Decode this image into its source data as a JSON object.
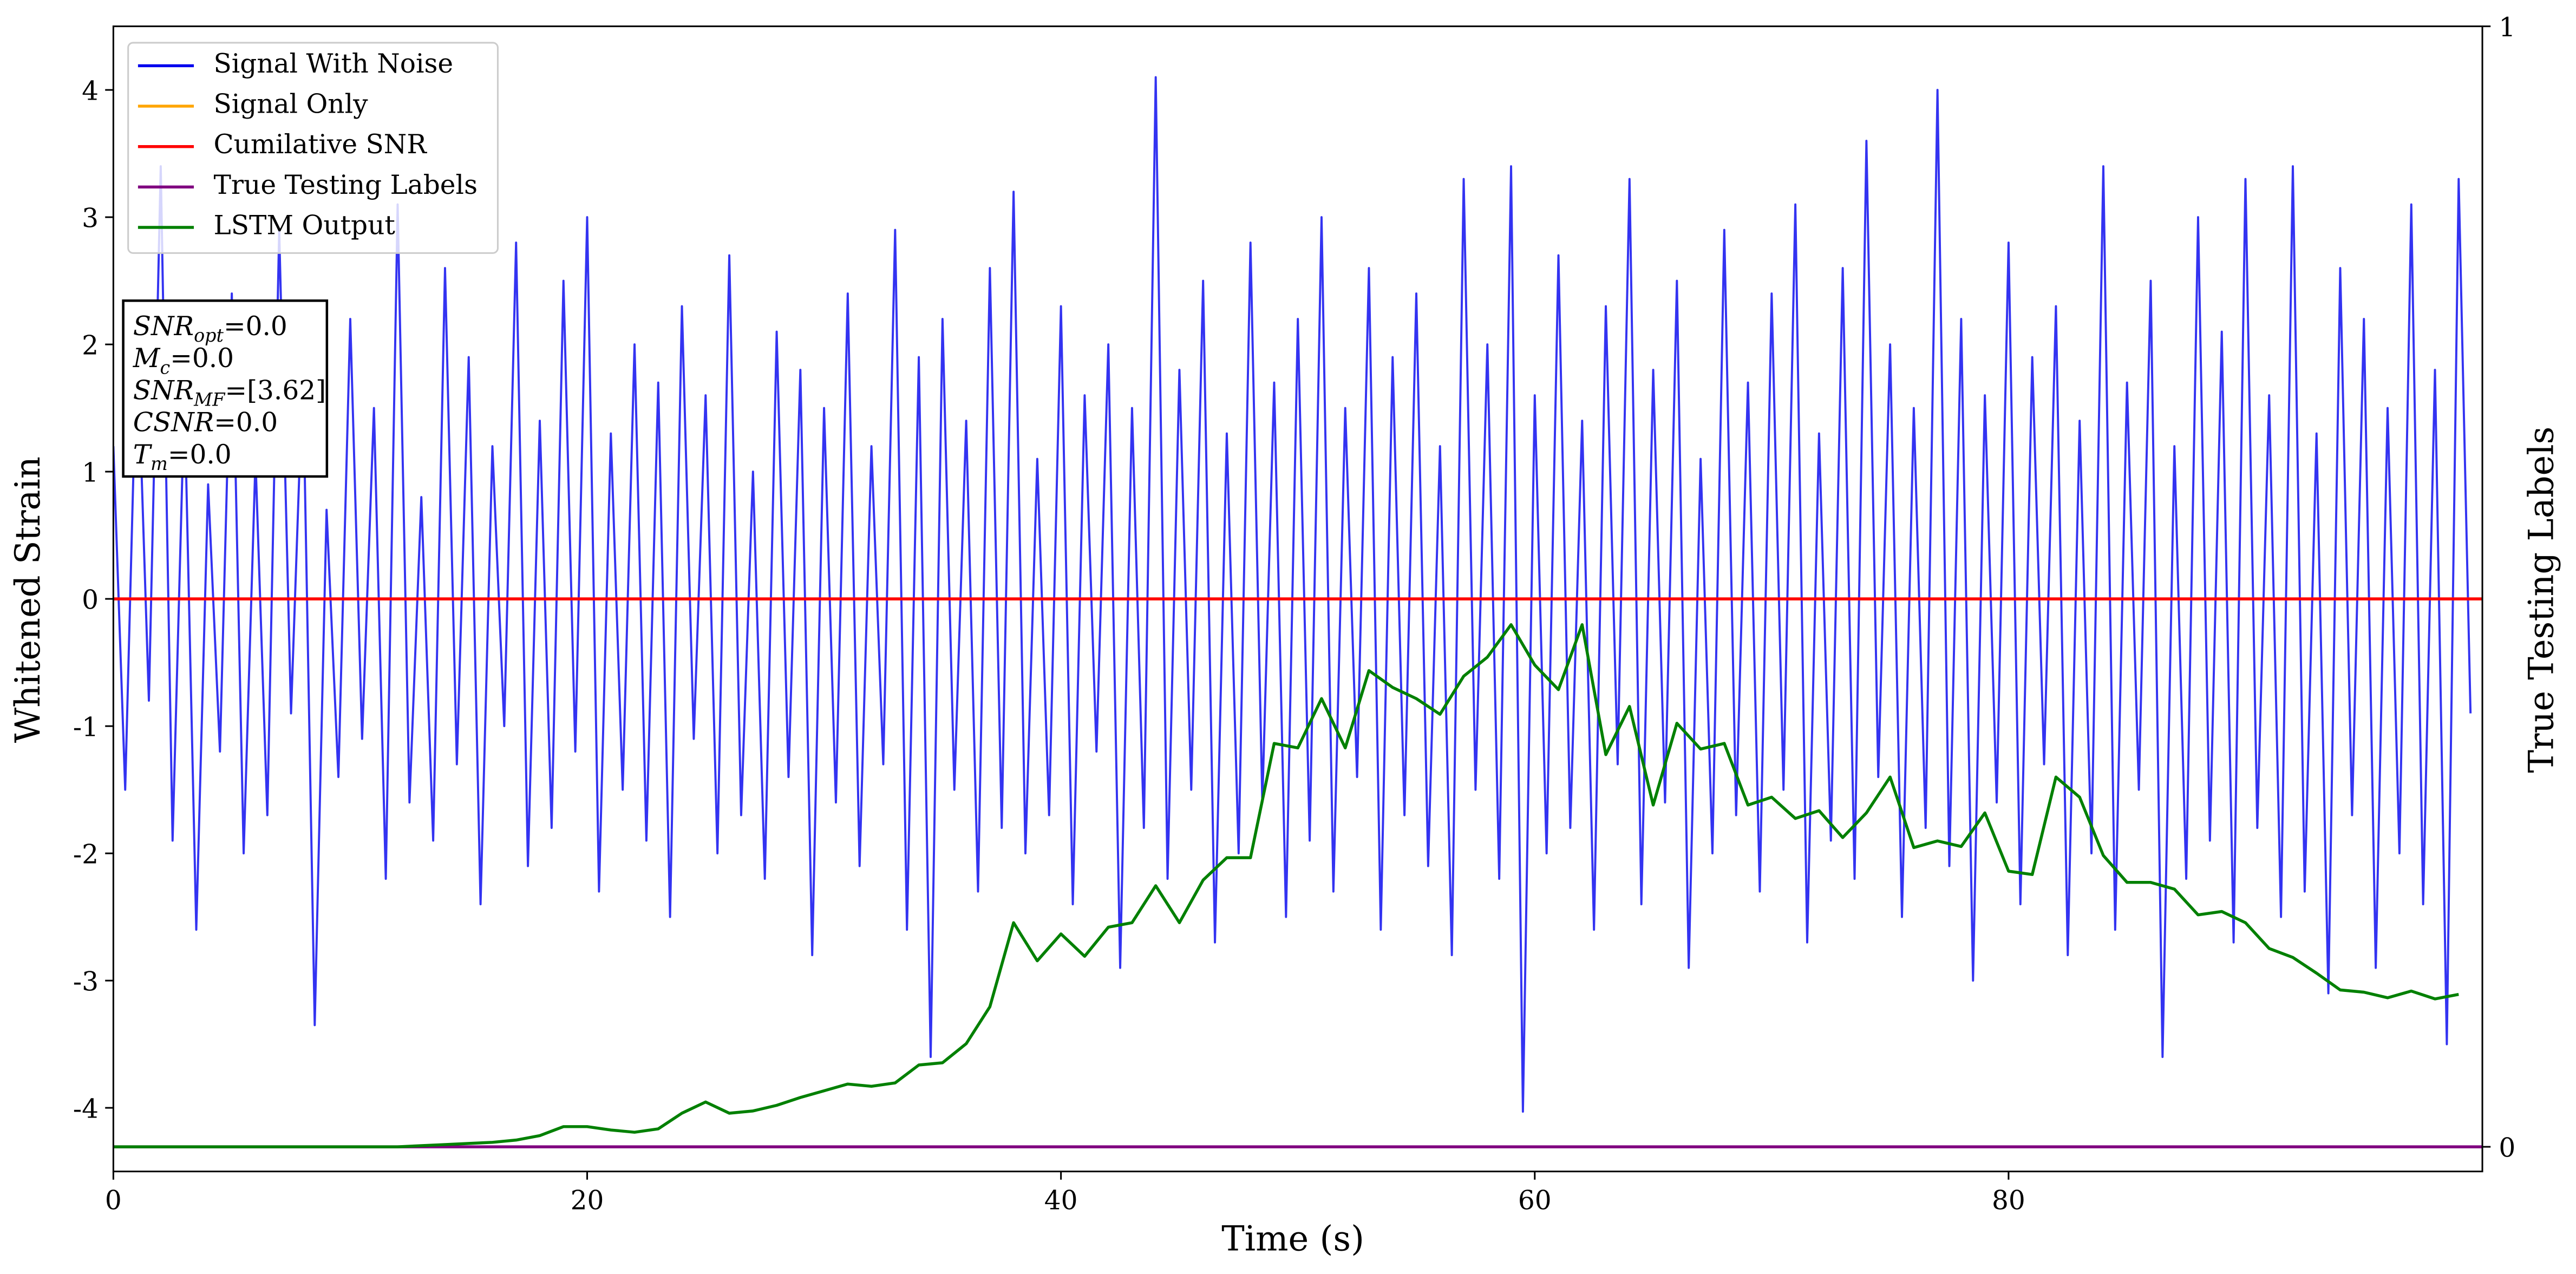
{
  "chart_data": {
    "type": "line",
    "xlabel": "Time (s)",
    "ylabel": "Whitened Strain",
    "y2label": "True Testing Labels",
    "xlim": [
      0,
      100
    ],
    "ylim": [
      -4.5,
      4.5
    ],
    "y2lim": [
      -0.022,
      1
    ],
    "xticks": [
      0,
      20,
      40,
      60,
      80
    ],
    "yticks": [
      -4,
      -3,
      -2,
      -1,
      0,
      1,
      2,
      3,
      4
    ],
    "y2ticks": [
      0,
      1
    ],
    "legend": "upper left",
    "annotations": [
      {
        "label": "SNR",
        "subscript": "opt",
        "text": "=0.0"
      },
      {
        "label": "M",
        "subscript": "c",
        "text": "=0.0"
      },
      {
        "label": "SNR",
        "subscript": "MF",
        "text": "=[3.62]"
      },
      {
        "label": "CSNR",
        "text": "=0.0"
      },
      {
        "label": "T",
        "subscript": "m",
        "text": "=0.0"
      }
    ],
    "series": [
      {
        "name": "Signal With Noise",
        "color": "#0000ee",
        "axis": "y",
        "x": [
          0,
          0.5,
          1,
          1.5,
          2,
          2.5,
          3,
          3.5,
          4,
          4.5,
          5,
          5.5,
          6,
          6.5,
          7,
          7.5,
          8,
          8.5,
          9,
          9.5,
          10,
          10.5,
          11,
          11.5,
          12,
          12.5,
          13,
          13.5,
          14,
          14.5,
          15,
          15.5,
          16,
          16.5,
          17,
          17.5,
          18,
          18.5,
          19,
          19.5,
          20,
          20.5,
          21,
          21.5,
          22,
          22.5,
          23,
          23.5,
          24,
          24.5,
          25,
          25.5,
          26,
          26.5,
          27,
          27.5,
          28,
          28.5,
          29,
          29.5,
          30,
          30.5,
          31,
          31.5,
          32,
          32.5,
          33,
          33.5,
          34,
          34.5,
          35,
          35.5,
          36,
          36.5,
          37,
          37.5,
          38,
          38.5,
          39,
          39.5,
          40,
          40.5,
          41,
          41.5,
          42,
          42.5,
          43,
          43.5,
          44,
          44.5,
          45,
          45.5,
          46,
          46.5,
          47,
          47.5,
          48,
          48.5,
          49,
          49.5,
          50,
          50.5,
          51,
          51.5,
          52,
          52.5,
          53,
          53.5,
          54,
          54.5,
          55,
          55.5,
          56,
          56.5,
          57,
          57.5,
          58,
          58.5,
          59,
          59.5,
          60,
          60.5,
          61,
          61.5,
          62,
          62.5,
          63,
          63.5,
          64,
          64.5,
          65,
          65.5,
          66,
          66.5,
          67,
          67.5,
          68,
          68.5,
          69,
          69.5,
          70,
          70.5,
          71,
          71.5,
          72,
          72.5,
          73,
          73.5,
          74,
          74.5,
          75,
          75.5,
          76,
          76.5,
          77,
          77.5,
          78,
          78.5,
          79,
          79.5,
          80,
          80.5,
          81,
          81.5,
          82,
          82.5,
          83,
          83.5,
          84,
          84.5,
          85,
          85.5,
          86,
          86.5,
          87,
          87.5,
          88,
          88.5,
          89,
          89.5,
          90,
          90.5,
          91,
          91.5,
          92,
          92.5,
          93,
          93.5,
          94,
          94.5,
          95,
          95.5,
          96,
          96.5,
          97,
          97.5,
          98,
          98.5,
          99,
          99.5
        ],
        "values": [
          1.2,
          -1.5,
          2.1,
          -0.8,
          3.4,
          -1.9,
          1.6,
          -2.6,
          0.9,
          -1.2,
          2.4,
          -2.0,
          1.1,
          -1.7,
          2.9,
          -0.9,
          1.8,
          -3.35,
          0.7,
          -1.4,
          2.2,
          -1.1,
          1.5,
          -2.2,
          3.1,
          -1.6,
          0.8,
          -1.9,
          2.6,
          -1.3,
          1.9,
          -2.4,
          1.2,
          -1.0,
          2.8,
          -2.1,
          1.4,
          -1.8,
          2.5,
          -1.2,
          3.0,
          -2.3,
          1.3,
          -1.5,
          2.0,
          -1.9,
          1.7,
          -2.5,
          2.3,
          -1.1,
          1.6,
          -2.0,
          2.7,
          -1.7,
          1.0,
          -2.2,
          2.1,
          -1.4,
          1.8,
          -2.8,
          1.5,
          -1.6,
          2.4,
          -2.1,
          1.2,
          -1.3,
          2.9,
          -2.6,
          1.9,
          -3.6,
          2.2,
          -1.5,
          1.4,
          -2.3,
          2.6,
          -1.8,
          3.2,
          -2.0,
          1.1,
          -1.7,
          2.3,
          -2.4,
          1.6,
          -1.2,
          2.0,
          -2.9,
          1.5,
          -1.8,
          4.1,
          -2.2,
          1.8,
          -1.5,
          2.5,
          -2.7,
          1.3,
          -2.0,
          2.8,
          -1.6,
          1.7,
          -2.5,
          2.2,
          -1.9,
          3.0,
          -2.3,
          1.5,
          -1.4,
          2.6,
          -2.6,
          1.9,
          -1.7,
          2.4,
          -2.1,
          1.2,
          -2.8,
          3.3,
          -1.5,
          2.0,
          -2.2,
          3.4,
          -4.03,
          1.6,
          -2.0,
          2.7,
          -1.8,
          1.4,
          -2.6,
          2.3,
          -1.3,
          3.3,
          -2.4,
          1.8,
          -1.6,
          2.5,
          -2.9,
          1.1,
          -2.0,
          2.9,
          -1.7,
          1.7,
          -2.3,
          2.4,
          -1.5,
          3.1,
          -2.7,
          1.3,
          -1.9,
          2.6,
          -2.2,
          3.6,
          -1.4,
          2.0,
          -2.5,
          1.5,
          -1.8,
          4.0,
          -2.1,
          2.2,
          -3.0,
          1.6,
          -1.6,
          2.8,
          -2.4,
          1.9,
          -1.3,
          2.3,
          -2.8,
          1.4,
          -2.0,
          3.4,
          -2.6,
          1.7,
          -1.5,
          2.5,
          -3.6,
          1.2,
          -2.2,
          3.0,
          -1.9,
          2.1,
          -2.7,
          3.3,
          -1.8,
          1.6,
          -2.5,
          3.4,
          -2.3,
          1.3,
          -3.1,
          2.6,
          -1.7,
          2.2,
          -2.9,
          1.5,
          -2.0,
          3.1,
          -2.4,
          1.8,
          -3.5,
          3.3,
          -0.9
        ]
      },
      {
        "name": "Signal Only",
        "color": "#ffa500",
        "axis": "y",
        "x": [
          0,
          100
        ],
        "values": [
          0,
          0
        ]
      },
      {
        "name": "Cumilative SNR",
        "color": "#ff0000",
        "axis": "y",
        "x": [
          0,
          100
        ],
        "values": [
          0,
          0
        ]
      },
      {
        "name": "True Testing Labels",
        "color": "#800080",
        "axis": "y2",
        "x": [
          0,
          100
        ],
        "values": [
          0,
          0
        ]
      },
      {
        "name": "LSTM Output",
        "color": "#008000",
        "axis": "y2",
        "x": [
          0,
          1,
          2,
          3,
          4,
          5,
          6,
          7,
          8,
          9,
          10,
          11,
          12,
          13,
          14,
          15,
          16,
          17,
          18,
          19,
          20,
          21,
          22,
          23,
          24,
          25,
          26,
          27,
          28,
          29,
          30,
          31,
          32,
          33,
          34,
          35,
          36,
          37,
          38,
          39,
          40,
          41,
          42,
          43,
          44,
          45,
          46,
          47,
          48,
          49,
          50,
          51,
          52,
          53,
          54,
          55,
          56,
          57,
          58,
          59,
          60,
          61,
          62,
          63,
          64,
          65,
          66,
          67,
          68,
          69,
          70,
          71,
          72,
          73,
          74,
          75,
          76,
          77,
          78,
          79,
          80,
          81,
          82,
          83,
          84,
          85,
          86,
          87,
          88,
          89,
          90,
          91,
          92,
          93,
          94,
          95,
          96,
          97,
          98,
          99
        ],
        "values": [
          0,
          0,
          0,
          0,
          0,
          0,
          0,
          0,
          0,
          0,
          0,
          0,
          0,
          0.001,
          0.002,
          0.003,
          0.004,
          0.006,
          0.01,
          0.018,
          0.018,
          0.015,
          0.013,
          0.016,
          0.03,
          0.04,
          0.03,
          0.032,
          0.037,
          0.044,
          0.05,
          0.056,
          0.054,
          0.057,
          0.073,
          0.075,
          0.092,
          0.125,
          0.2,
          0.166,
          0.19,
          0.17,
          0.196,
          0.2,
          0.233,
          0.2,
          0.238,
          0.258,
          0.258,
          0.36,
          0.356,
          0.4,
          0.356,
          0.425,
          0.41,
          0.4,
          0.386,
          0.42,
          0.437,
          0.466,
          0.43,
          0.408,
          0.466,
          0.35,
          0.393,
          0.305,
          0.378,
          0.355,
          0.36,
          0.305,
          0.312,
          0.293,
          0.3,
          0.276,
          0.298,
          0.33,
          0.267,
          0.273,
          0.268,
          0.298,
          0.246,
          0.243,
          0.33,
          0.312,
          0.26,
          0.236,
          0.236,
          0.23,
          0.207,
          0.21,
          0.2,
          0.177,
          0.169,
          0.155,
          0.14,
          0.138,
          0.133,
          0.139,
          0.132,
          0.136
        ]
      }
    ]
  }
}
